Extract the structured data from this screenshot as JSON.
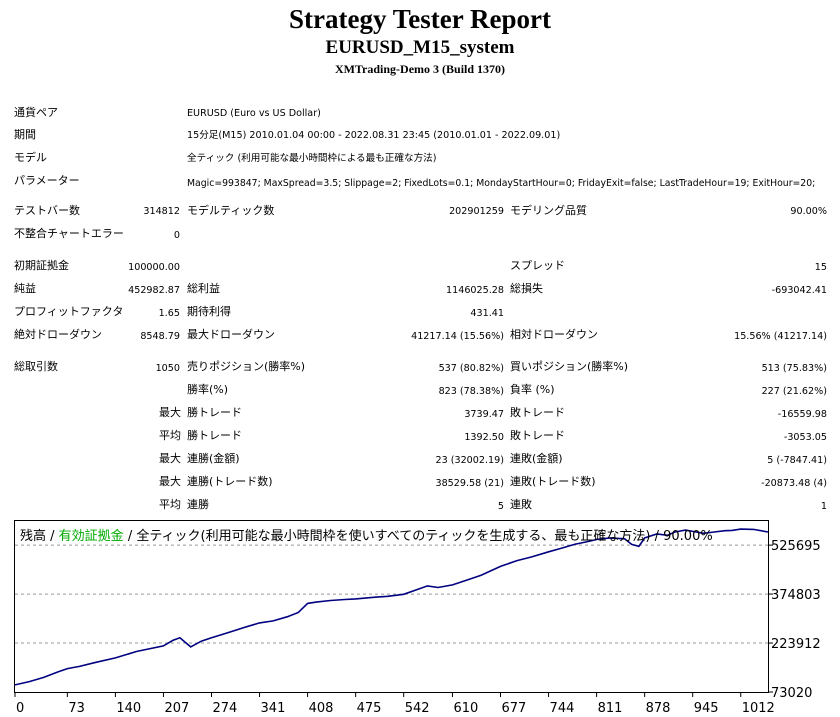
{
  "header": {
    "title": "Strategy Tester Report",
    "subtitle": "EURUSD_M15_system",
    "server": "XMTrading-Demo 3 (Build 1370)"
  },
  "info": {
    "symbol_label": "通貨ペア",
    "symbol_value": "EURUSD (Euro vs US Dollar)",
    "period_label": "期間",
    "period_value": "15分足(M15) 2010.01.04 00:00 - 2022.08.31 23:45 (2010.01.01 - 2022.09.01)",
    "model_label": "モデル",
    "model_value": "全ティック (利用可能な最小時間枠による最も正確な方法)",
    "params_label": "パラメーター",
    "params_value": "Magic=993847; MaxSpread=3.5; Slippage=2; FixedLots=0.1; MondayStartHour=0; FridayExit=false; LastTradeHour=19; ExitHour=20;"
  },
  "stats": {
    "bars_label": "テストバー数",
    "bars_value": "314812",
    "ticks_label": "モデルティック数",
    "ticks_value": "202901259",
    "quality_label": "モデリング品質",
    "quality_value": "90.00%",
    "mismatch_label": "不整合チャートエラー",
    "mismatch_value": "0",
    "deposit_label": "初期証拠金",
    "deposit_value": "100000.00",
    "spread_label": "スプレッド",
    "spread_value": "15",
    "net_label": "純益",
    "net_value": "452982.87",
    "gross_profit_label": "総利益",
    "gross_profit_value": "1146025.28",
    "gross_loss_label": "総損失",
    "gross_loss_value": "-693042.41",
    "pf_label": "プロフィットファクタ",
    "pf_value": "1.65",
    "expected_label": "期待利得",
    "expected_value": "431.41",
    "abs_dd_label": "絶対ドローダウン",
    "abs_dd_value": "8548.79",
    "max_dd_label": "最大ドローダウン",
    "max_dd_value": "41217.14 (15.56%)",
    "rel_dd_label": "相対ドローダウン",
    "rel_dd_value": "15.56% (41217.14)",
    "trades_label": "総取引数",
    "trades_value": "1050",
    "short_label": "売りポジション(勝率%)",
    "short_value": "537 (80.82%)",
    "long_label": "買いポジション(勝率%)",
    "long_value": "513 (75.83%)",
    "win_label": "勝率(%)",
    "win_value": "823 (78.38%)",
    "loss_label": "負率 (%)",
    "loss_value": "227 (21.62%)",
    "max_label": "最大",
    "avg_label": "平均",
    "largest_win_label": "勝トレード",
    "largest_win_value": "3739.47",
    "largest_loss_label": "敗トレード",
    "largest_loss_value": "-16559.98",
    "avg_win_label": "勝トレード",
    "avg_win_value": "1392.50",
    "avg_loss_label": "敗トレード",
    "avg_loss_value": "-3053.05",
    "max_consec_wins_label": "連勝(金額)",
    "max_consec_wins_value": "23 (32002.19)",
    "max_consec_losses_label": "連敗(金額)",
    "max_consec_losses_value": "5 (-7847.41)",
    "max_consec_profit_label": "連勝(トレード数)",
    "max_consec_profit_value": "38529.58 (21)",
    "max_consec_loss_label": "連敗(トレード数)",
    "max_consec_loss_value": "-20873.48 (4)",
    "avg_consec_wins_label": "連勝",
    "avg_consec_wins_value": "5",
    "avg_consec_losses_label": "連敗",
    "avg_consec_losses_value": "1"
  },
  "chart_data": {
    "type": "line",
    "legend": [
      {
        "text": "残高",
        "color": "#000000"
      },
      {
        "text": " / ",
        "color": "#000000"
      },
      {
        "text": "有効証拠金",
        "color": "#00aa00"
      },
      {
        "text": " / 全ティック(利用可能な最小時間枠を使いすべてのティックを生成する、最も正確な方法) / 90.00%",
        "color": "#000000"
      }
    ],
    "x_ticks": [
      0,
      73,
      140,
      207,
      274,
      341,
      408,
      475,
      542,
      610,
      677,
      744,
      811,
      878,
      945,
      1012
    ],
    "y_ticks": [
      73020,
      223912,
      374803,
      525695
    ],
    "xlim": [
      0,
      1050
    ],
    "ylim": [
      73020,
      600000
    ],
    "line_color": "#000080",
    "grid": true,
    "series": [
      {
        "x": [
          0,
          20,
          40,
          60,
          73,
          90,
          110,
          140,
          170,
          207,
          220,
          230,
          245,
          260,
          274,
          300,
          320,
          341,
          360,
          380,
          395,
          408,
          420,
          440,
          460,
          475,
          500,
          520,
          542,
          560,
          575,
          590,
          610,
          630,
          650,
          677,
          700,
          720,
          744,
          760,
          780,
          800,
          811,
          830,
          850,
          860,
          870,
          878,
          895,
          910,
          920,
          935,
          945,
          960,
          975,
          990,
          1000,
          1012,
          1030,
          1050
        ],
        "values": [
          95000,
          105000,
          118000,
          135000,
          145000,
          152000,
          163000,
          178000,
          198000,
          215000,
          232000,
          240000,
          212000,
          230000,
          240000,
          258000,
          272000,
          286000,
          292000,
          305000,
          318000,
          346000,
          350000,
          355000,
          358000,
          360000,
          365000,
          368000,
          374000,
          388000,
          400000,
          395000,
          403000,
          418000,
          433000,
          460000,
          478000,
          489000,
          505000,
          515000,
          528000,
          537000,
          543000,
          548000,
          545000,
          528000,
          522000,
          548000,
          560000,
          556000,
          566000,
          572000,
          568000,
          562000,
          566000,
          570000,
          571000,
          575000,
          574000,
          566000
        ]
      }
    ]
  }
}
